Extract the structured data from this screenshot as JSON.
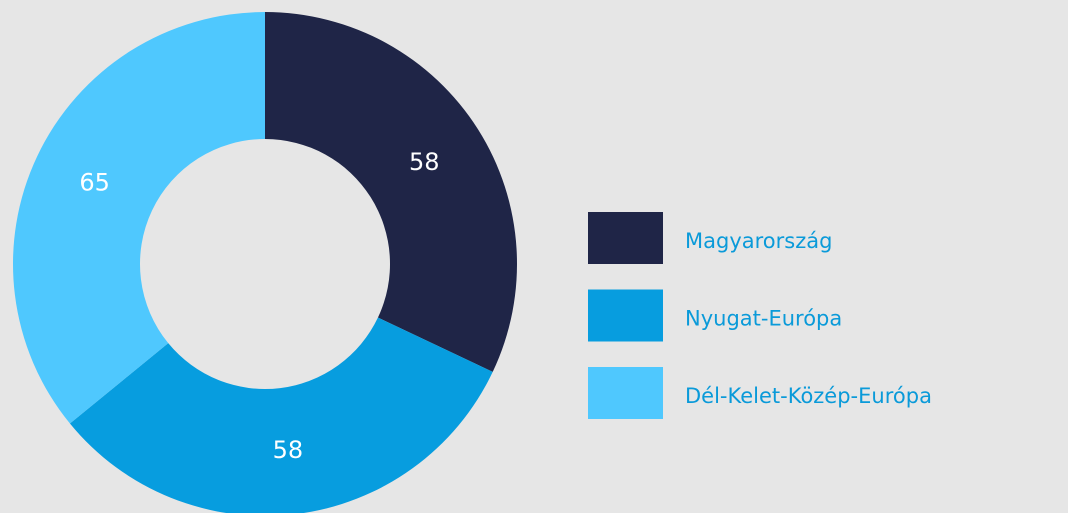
{
  "chart_data": {
    "type": "donut",
    "categories": [
      "Magyarország",
      "Nyugat-Európa",
      "Dél-Kelet-Közép-Európa"
    ],
    "values": [
      58,
      58,
      65
    ],
    "colors": [
      "#1f2547",
      "#079ddf",
      "#4fc8fe"
    ],
    "legend": "right"
  }
}
